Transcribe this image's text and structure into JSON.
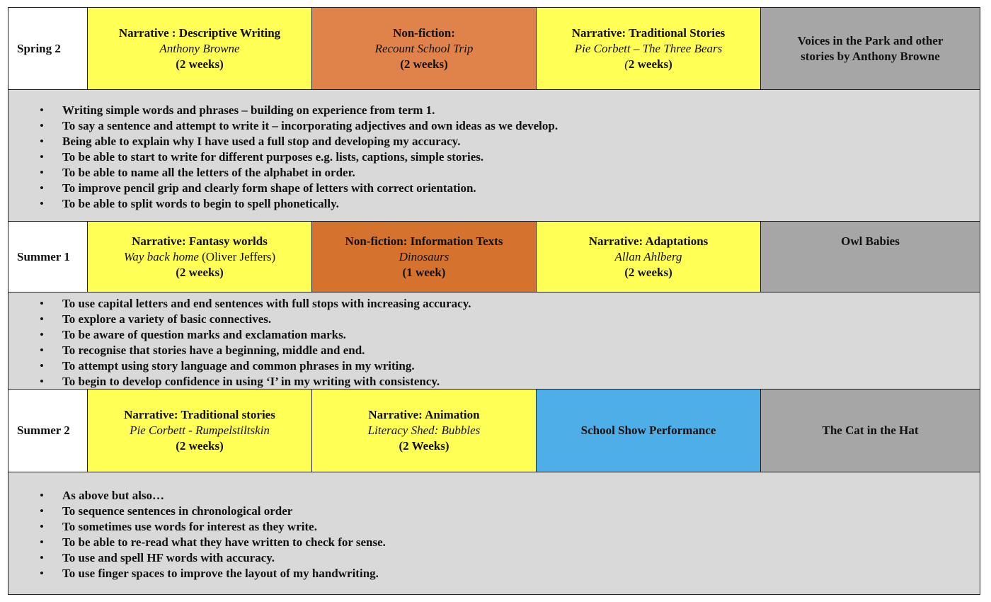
{
  "colors": {
    "yellow": "#ffff55",
    "orange": "#e0834a",
    "dark_orange": "#d4722e",
    "blue": "#4eaee8",
    "gray": "#a6a6a6",
    "objectives_bg": "#d9d9d9"
  },
  "terms": [
    {
      "term": "Spring 2",
      "cells": [
        {
          "color": "yellow",
          "lines": [
            [
              {
                "t": "Narrative : Descriptive Writing",
                "s": "b"
              }
            ],
            [
              {
                "t": "Anthony Browne",
                "s": "i"
              }
            ],
            [
              {
                "t": "(2 weeks)",
                "s": "b"
              }
            ]
          ]
        },
        {
          "color": "orange",
          "lines": [
            [
              {
                "t": "Non-fiction:",
                "s": "b"
              }
            ],
            [
              {
                "t": "Recount School Trip",
                "s": "i"
              }
            ],
            [
              {
                "t": "(2 weeks)",
                "s": "b"
              }
            ]
          ]
        },
        {
          "color": "yellow",
          "lines": [
            [
              {
                "t": "Narrative: Traditional Stories",
                "s": "b"
              }
            ],
            [
              {
                "t": "Pie Corbett – The Three Bears",
                "s": "i"
              }
            ],
            [
              {
                "t": "(",
                "s": "i"
              },
              {
                "t": "2 weeks)",
                "s": "b"
              }
            ]
          ]
        },
        {
          "color": "gray",
          "lines": [
            [
              {
                "t": "Voices in the Park and other",
                "s": "b"
              }
            ],
            [
              {
                "t": "stories by Anthony Browne",
                "s": "b"
              }
            ]
          ]
        }
      ],
      "objectives": [
        "Writing simple words and phrases – building on experience from term 1.",
        "To say a sentence and attempt to write it – incorporating adjectives and own ideas as we develop.",
        "Being able to explain why I have used a full stop and developing my accuracy.",
        "To be able to start to write for different purposes e.g. lists, captions, simple stories.",
        "To be able to name all the letters of the alphabet in order.",
        "To improve pencil grip and clearly form shape of letters with correct orientation.",
        "To be able to split words to begin to spell phonetically."
      ]
    },
    {
      "term": "Summer 1",
      "cells": [
        {
          "color": "yellow",
          "lines": [
            [
              {
                "t": "Narrative: Fantasy worlds",
                "s": "b"
              }
            ],
            [
              {
                "t": "Way back home",
                "s": "i"
              },
              {
                "t": " (Oliver Jeffers)",
                "s": "n"
              }
            ],
            [
              {
                "t": "(2 weeks)",
                "s": "b"
              }
            ]
          ]
        },
        {
          "color": "dark_orange",
          "lines": [
            [
              {
                "t": "Non-fiction:  Information Texts",
                "s": "b"
              }
            ],
            [
              {
                "t": "Dinosaurs",
                "s": "i"
              }
            ],
            [
              {
                "t": "(1 week)",
                "s": "b"
              }
            ]
          ]
        },
        {
          "color": "yellow",
          "lines": [
            [
              {
                "t": "Narrative: Adaptations",
                "s": "b"
              }
            ],
            [
              {
                "t": "Allan Ahlberg",
                "s": "i"
              }
            ],
            [
              {
                "t": "(2 weeks)",
                "s": "b"
              }
            ]
          ]
        },
        {
          "color": "gray",
          "lines": [
            [
              {
                "t": "Owl Babies",
                "s": "b"
              }
            ]
          ]
        }
      ],
      "objectives": [
        "To use capital letters and end sentences with full stops with increasing accuracy.",
        "To explore a variety of basic connectives.",
        "To be aware of question marks and exclamation marks.",
        "To recognise that stories have a beginning, middle and end.",
        "To attempt using story language and common phrases in my writing.",
        "To begin to develop confidence in using ‘I’ in my writing with consistency."
      ]
    },
    {
      "term": "Summer 2",
      "cells": [
        {
          "color": "yellow",
          "lines": [
            [
              {
                "t": "Narrative: Traditional stories",
                "s": "b"
              }
            ],
            [
              {
                "t": "Pie Corbett - Rumpelstiltskin",
                "s": "i"
              }
            ],
            [
              {
                "t": "(2 weeks)",
                "s": "b"
              }
            ]
          ]
        },
        {
          "color": "yellow",
          "lines": [
            [
              {
                "t": "Narrative: Animation",
                "s": "b"
              }
            ],
            [
              {
                "t": "Literacy Shed: Bubbles",
                "s": "i"
              }
            ],
            [
              {
                "t": "(2 Weeks)",
                "s": "b"
              }
            ]
          ]
        },
        {
          "color": "blue",
          "lines": [
            [
              {
                "t": "School Show Performance",
                "s": "b"
              }
            ]
          ]
        },
        {
          "color": "gray",
          "lines": [
            [
              {
                "t": "The Cat in the Hat",
                "s": "b"
              }
            ]
          ]
        }
      ],
      "objectives": [
        "As above but also…",
        "To sequence sentences in chronological order",
        "To sometimes use words for interest as they write.",
        "To be able to re-read what they have written to check for sense.",
        "To use and spell HF words with accuracy.",
        "To use finger spaces to improve the layout of my handwriting."
      ]
    }
  ]
}
